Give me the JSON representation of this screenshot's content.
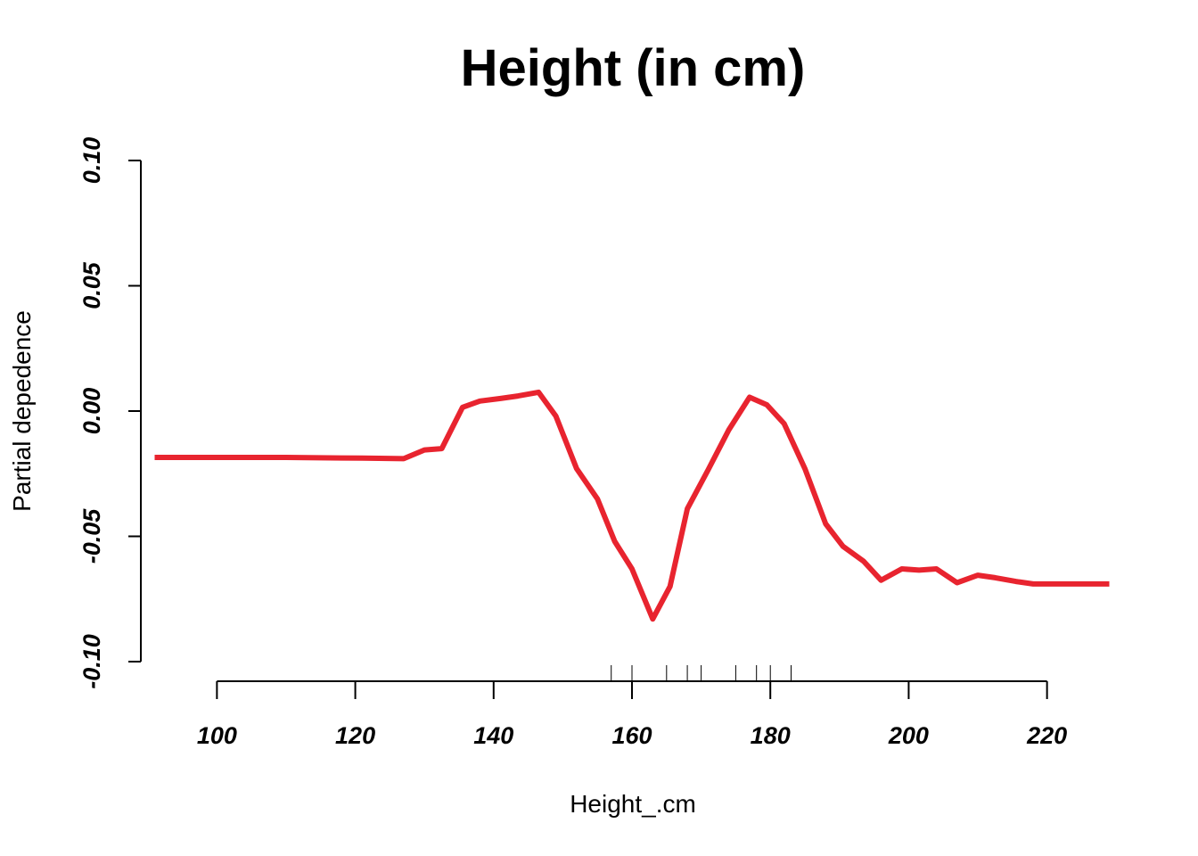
{
  "chart_data": {
    "type": "line",
    "title": "Height (in cm)",
    "xlabel": "Height_.cm",
    "ylabel": "Partial depedence",
    "xlim": [
      89,
      231
    ],
    "ylim": [
      -0.1,
      0.1
    ],
    "x_ticks": [
      100,
      120,
      140,
      160,
      180,
      200,
      220
    ],
    "x_tick_labels": [
      "100",
      "120",
      "140",
      "160",
      "180",
      "200",
      "220"
    ],
    "y_ticks": [
      -0.1,
      -0.05,
      0.0,
      0.05,
      0.1
    ],
    "y_tick_labels": [
      "-0.10",
      "-0.05",
      "0.00",
      "0.05",
      "0.10"
    ],
    "grid": false,
    "line_color": "#e8242f",
    "rug": [
      157,
      160,
      165,
      168,
      170,
      175,
      178,
      180,
      183
    ],
    "series": [
      {
        "x": [
          91,
          110,
          121,
          127,
          130,
          132.5,
          135.5,
          138,
          141,
          143.5,
          146.5,
          149,
          152,
          155,
          157.5,
          160,
          163,
          165.5,
          168,
          171,
          174,
          177,
          179.5,
          182,
          185,
          188,
          190.5,
          193.5,
          196,
          199,
          201.5,
          204,
          207,
          210,
          212.5,
          215.5,
          218,
          221,
          224,
          229
        ],
        "y": [
          -0.0185,
          -0.0185,
          -0.0188,
          -0.019,
          -0.0155,
          -0.015,
          0.0015,
          0.004,
          0.005,
          0.006,
          0.0075,
          -0.002,
          -0.023,
          -0.035,
          -0.052,
          -0.063,
          -0.083,
          -0.07,
          -0.039,
          -0.0235,
          -0.0075,
          0.0055,
          0.0025,
          -0.005,
          -0.023,
          -0.045,
          -0.054,
          -0.06,
          -0.0675,
          -0.063,
          -0.0635,
          -0.063,
          -0.0685,
          -0.0655,
          -0.0665,
          -0.068,
          -0.069,
          -0.069,
          -0.069,
          -0.069
        ]
      }
    ]
  }
}
